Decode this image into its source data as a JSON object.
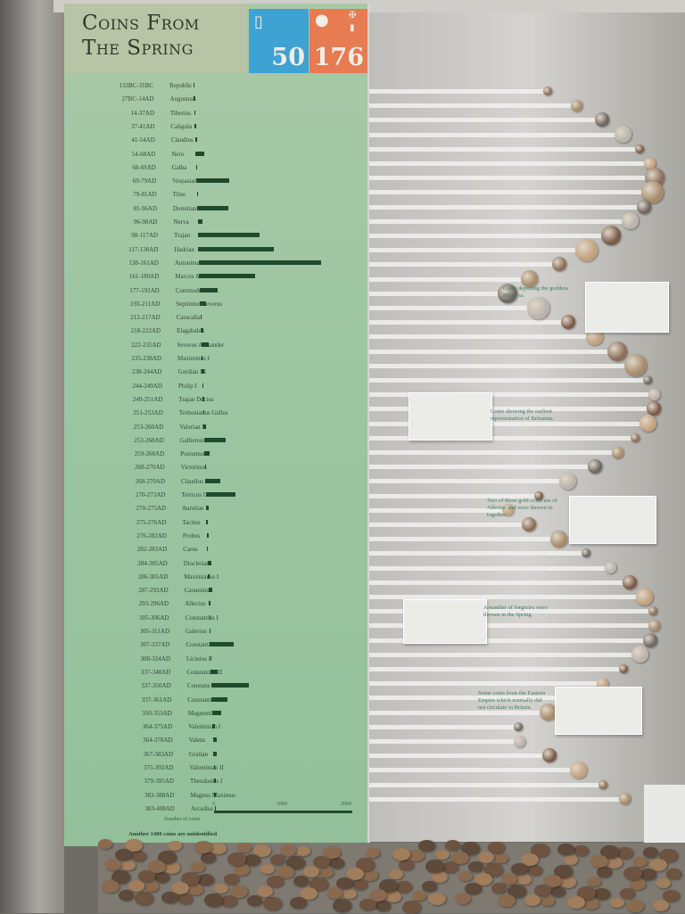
{
  "panel": {
    "title_line1": "Coins From",
    "title_line2": "The Spring",
    "blue_count": "50",
    "orange_count": "176",
    "blue_icon": "tablet-icon",
    "orange_icon": "head-icon",
    "flag_icons": [
      "uk-flag-icon",
      "france-flag-icon"
    ],
    "colors": {
      "panel": "#9dc6a2",
      "bar": "#1f4a2c",
      "blue": "#3ea2d3",
      "orange": "#e77b52"
    }
  },
  "chart_data": {
    "type": "bar",
    "orientation": "horizontal",
    "xlabel": "Number of coins",
    "xlim": [
      0,
      2000
    ],
    "x_ticks": [
      "0",
      "1000",
      "2000"
    ],
    "rows": [
      {
        "dates": "133BC-31BC",
        "name": "Republic",
        "value": 1
      },
      {
        "dates": "27BC-14AD",
        "name": "Augustus",
        "value": 1
      },
      {
        "dates": "14-37AD",
        "name": "Tiberius",
        "value": 1
      },
      {
        "dates": "37-41AD",
        "name": "Caligula",
        "value": 1
      },
      {
        "dates": "41-54AD",
        "name": "Claudius",
        "value": 30
      },
      {
        "dates": "54-68AD",
        "name": "Nero",
        "value": 120
      },
      {
        "dates": "68-69AD",
        "name": "Galba",
        "value": 1
      },
      {
        "dates": "69-79AD",
        "name": "Vespasian",
        "value": 460
      },
      {
        "dates": "79-81AD",
        "name": "Titus",
        "value": 20
      },
      {
        "dates": "81-96AD",
        "name": "Domitian",
        "value": 440
      },
      {
        "dates": "96-98AD",
        "name": "Nerva",
        "value": 70
      },
      {
        "dates": "98-117AD",
        "name": "Trajan",
        "value": 860
      },
      {
        "dates": "117-138AD",
        "name": "Hadrian",
        "value": 1060
      },
      {
        "dates": "138-161AD",
        "name": "Antoninus Pius",
        "value": 1720
      },
      {
        "dates": "161-180AD",
        "name": "Marcus Aurelius",
        "value": 790
      },
      {
        "dates": "177-192AD",
        "name": "Commodus",
        "value": 250
      },
      {
        "dates": "193-211AD",
        "name": "Septimius Severus",
        "value": 90
      },
      {
        "dates": "212-217AD",
        "name": "Caracalla",
        "value": 5
      },
      {
        "dates": "218-222AD",
        "name": "Elagabalus",
        "value": 40
      },
      {
        "dates": "222-235AD",
        "name": "Severus Alexander",
        "value": 110
      },
      {
        "dates": "235-238AD",
        "name": "Maximinus I",
        "value": 5
      },
      {
        "dates": "238-244AD",
        "name": "Gordian III",
        "value": 30
      },
      {
        "dates": "244-249AD",
        "name": "Philip I",
        "value": 20
      },
      {
        "dates": "249-251AD",
        "name": "Trajan Decius",
        "value": 5
      },
      {
        "dates": "251-253AD",
        "name": "Trebonianus Gallus",
        "value": 5
      },
      {
        "dates": "253-260AD",
        "name": "Valerian I",
        "value": 40
      },
      {
        "dates": "253-268AD",
        "name": "Gallienus",
        "value": 310
      },
      {
        "dates": "259-268AD",
        "name": "Postumus",
        "value": 70
      },
      {
        "dates": "268-270AD",
        "name": "Victorinus",
        "value": 20
      },
      {
        "dates": "268-270AD",
        "name": "Claudius II",
        "value": 210
      },
      {
        "dates": "270-273AD",
        "name": "Tetricus I",
        "value": 420
      },
      {
        "dates": "270-275AD",
        "name": "Aurelian",
        "value": 40
      },
      {
        "dates": "275-276AD",
        "name": "Tacitus",
        "value": 20
      },
      {
        "dates": "276-282AD",
        "name": "Probus",
        "value": 30
      },
      {
        "dates": "282-283AD",
        "name": "Carus",
        "value": 5
      },
      {
        "dates": "284-305AD",
        "name": "Diocletian",
        "value": 50
      },
      {
        "dates": "286-305AD",
        "name": "Maximianus I",
        "value": 20
      },
      {
        "dates": "287-293AD",
        "name": "Carausius",
        "value": 50
      },
      {
        "dates": "293-296AD",
        "name": "Allectus",
        "value": 30
      },
      {
        "dates": "305-306AD",
        "name": "Constantius I",
        "value": 5
      },
      {
        "dates": "305-311AD",
        "name": "Galerius",
        "value": 5
      },
      {
        "dates": "307-337AD",
        "name": "Constantine I",
        "value": 330
      },
      {
        "dates": "308-324AD",
        "name": "Licinius I",
        "value": 20
      },
      {
        "dates": "337-340AD",
        "name": "Constantine II",
        "value": 100
      },
      {
        "dates": "337-350AD",
        "name": "Constans",
        "value": 530
      },
      {
        "dates": "337-361AD",
        "name": "Constantius II",
        "value": 220
      },
      {
        "dates": "350-353AD",
        "name": "Magnentius",
        "value": 130
      },
      {
        "dates": "364-375AD",
        "name": "Valentinian I",
        "value": 40
      },
      {
        "dates": "364-378AD",
        "name": "Valens",
        "value": 55
      },
      {
        "dates": "367-383AD",
        "name": "Gratian",
        "value": 55
      },
      {
        "dates": "375-392AD",
        "name": "Valentinian II",
        "value": 5
      },
      {
        "dates": "379-395AD",
        "name": "Theodosius I",
        "value": 20
      },
      {
        "dates": "383-388AD",
        "name": "Magnus Maximus",
        "value": 5
      },
      {
        "dates": "383-408AD",
        "name": "Arcadius",
        "value": 5
      }
    ],
    "footnote": "Another 1400 coins are unidentified"
  },
  "display": {
    "captions": [
      "Coins depicting the goddess Minerva.",
      "Coins showing the earliest representation of Britannia.",
      "Two of these gold coins are of Allectus and were thrown in together.",
      "A number of forgeries were thrown in the Spring.",
      "Some coins from the Eastern Empire which normally did not circulate in Britain."
    ]
  }
}
